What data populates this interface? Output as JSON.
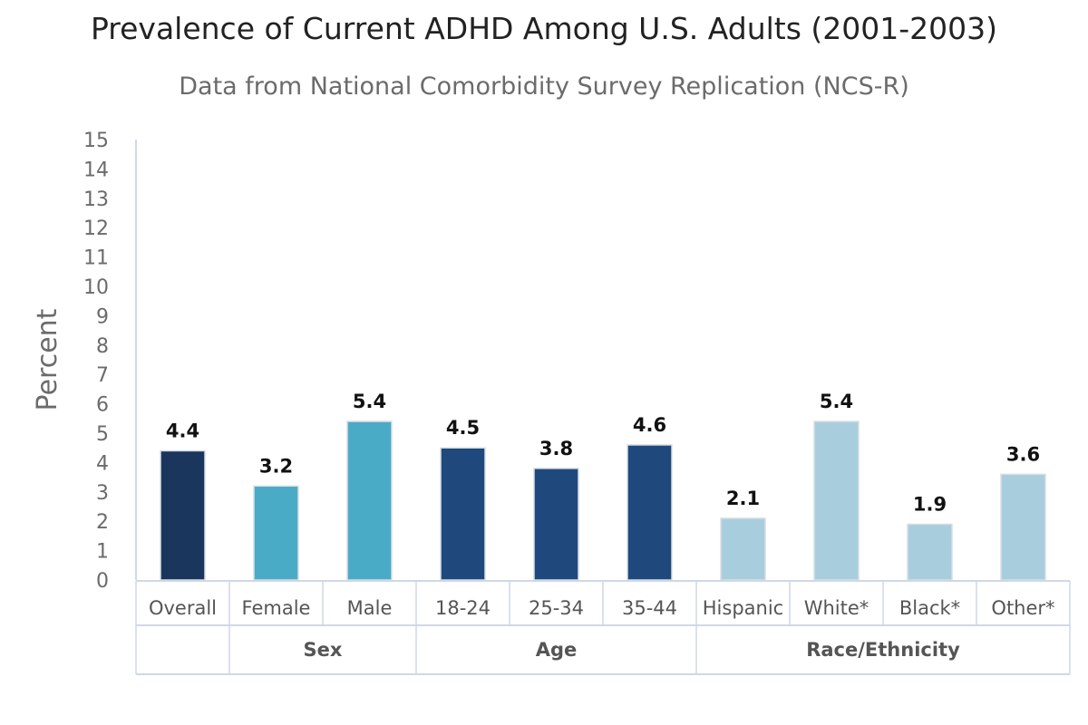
{
  "title": "Prevalence of Current ADHD Among U.S. Adults (2001-2003)",
  "subtitle": "Data from National Comorbidity Survey Replication (NCS-R)",
  "chart_data": {
    "type": "bar",
    "title": "Prevalence of Current ADHD Among U.S. Adults (2001-2003)",
    "subtitle": "Data from National Comorbidity Survey Replication (NCS-R)",
    "ylabel": "Percent",
    "xlabel": "",
    "ylim": [
      0,
      15
    ],
    "yticks": [
      "0",
      "1",
      "2",
      "3",
      "4",
      "5",
      "6",
      "7",
      "8",
      "9",
      "10",
      "11",
      "12",
      "13",
      "14",
      "15"
    ],
    "grid": false,
    "categories": [
      "Overall",
      "Female",
      "Male",
      "18-24",
      "25-34",
      "35-44",
      "Hispanic",
      "White*",
      "Black*",
      "Other*"
    ],
    "values": [
      4.4,
      3.2,
      5.4,
      4.5,
      3.8,
      4.6,
      2.1,
      5.4,
      1.9,
      3.6
    ],
    "value_labels": [
      "4.4",
      "3.2",
      "5.4",
      "4.5",
      "3.8",
      "4.6",
      "2.1",
      "5.4",
      "1.9",
      "3.6"
    ],
    "bar_colors": [
      "#1b365d",
      "#4aabc6",
      "#4aabc6",
      "#1f497d",
      "#1f497d",
      "#1f497d",
      "#a8cedd",
      "#a8cedd",
      "#a8cedd",
      "#a8cedd"
    ],
    "groups": [
      {
        "label": "",
        "categories": [
          "Overall"
        ]
      },
      {
        "label": "Sex",
        "categories": [
          "Female",
          "Male"
        ]
      },
      {
        "label": "Age",
        "categories": [
          "18-24",
          "25-34",
          "35-44"
        ]
      },
      {
        "label": "Race/Ethnicity",
        "categories": [
          "Hispanic",
          "White*",
          "Black*",
          "Other*"
        ]
      }
    ]
  }
}
